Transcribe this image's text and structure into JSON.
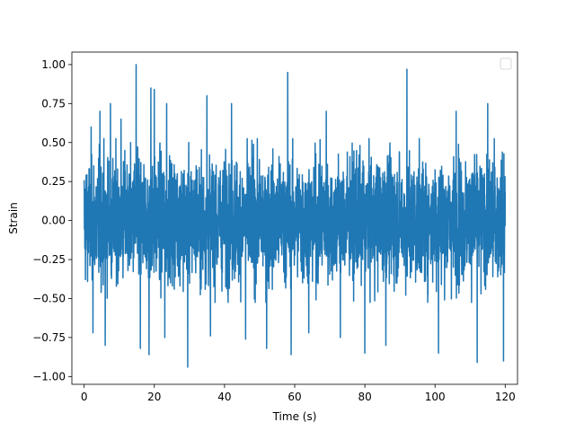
{
  "chart_data": {
    "type": "line",
    "title": "",
    "xlabel": "Time (s)",
    "ylabel": "Strain",
    "xlim": [
      -3.5,
      123.5
    ],
    "ylim": [
      -1.05,
      1.08
    ],
    "xticks": [
      {
        "value": 0,
        "label": "0"
      },
      {
        "value": 20,
        "label": "20"
      },
      {
        "value": 40,
        "label": "40"
      },
      {
        "value": 60,
        "label": "60"
      },
      {
        "value": 80,
        "label": "80"
      },
      {
        "value": 100,
        "label": "100"
      },
      {
        "value": 120,
        "label": "120"
      }
    ],
    "yticks": [
      {
        "value": 1.0,
        "label": "1.00"
      },
      {
        "value": 0.75,
        "label": "0.75"
      },
      {
        "value": 0.5,
        "label": "0.50"
      },
      {
        "value": 0.25,
        "label": "0.25"
      },
      {
        "value": 0.0,
        "label": "0.00"
      },
      {
        "value": -0.25,
        "label": "−0.25"
      },
      {
        "value": -0.5,
        "label": "−0.50"
      },
      {
        "value": -0.75,
        "label": "−0.75"
      },
      {
        "value": -1.0,
        "label": "−1.00"
      }
    ],
    "grid": false,
    "legend": {
      "position": "top-right",
      "entries": []
    },
    "series": [
      {
        "color": "#1f77b4",
        "x_range": [
          0,
          120
        ],
        "typical_envelope": [
          -0.5,
          0.5
        ],
        "peaks": [
          {
            "x": 2,
            "y": 0.6
          },
          {
            "x": 4.5,
            "y": 0.7
          },
          {
            "x": 7.5,
            "y": 0.75
          },
          {
            "x": 10.5,
            "y": 0.65
          },
          {
            "x": 14.8,
            "y": 1.0
          },
          {
            "x": 19,
            "y": 0.85
          },
          {
            "x": 20,
            "y": 0.84
          },
          {
            "x": 23.5,
            "y": 0.75
          },
          {
            "x": 35,
            "y": 0.8
          },
          {
            "x": 42,
            "y": 0.75
          },
          {
            "x": 58,
            "y": 0.95
          },
          {
            "x": 69,
            "y": 0.7
          },
          {
            "x": 92,
            "y": 0.97
          },
          {
            "x": 106,
            "y": 0.7
          },
          {
            "x": 115,
            "y": 0.75
          },
          {
            "x": 119.5,
            "y": 0.92
          }
        ],
        "troughs": [
          {
            "x": 2.5,
            "y": -0.72
          },
          {
            "x": 6,
            "y": -0.8
          },
          {
            "x": 16,
            "y": -0.82
          },
          {
            "x": 18.5,
            "y": -0.86
          },
          {
            "x": 23,
            "y": -0.75
          },
          {
            "x": 29.5,
            "y": -0.94
          },
          {
            "x": 36,
            "y": -0.74
          },
          {
            "x": 46,
            "y": -0.76
          },
          {
            "x": 52,
            "y": -0.82
          },
          {
            "x": 59,
            "y": -0.86
          },
          {
            "x": 64,
            "y": -0.72
          },
          {
            "x": 73,
            "y": -0.75
          },
          {
            "x": 80,
            "y": -0.85
          },
          {
            "x": 86,
            "y": -0.8
          },
          {
            "x": 101,
            "y": -0.85
          },
          {
            "x": 112,
            "y": -0.91
          },
          {
            "x": 119.5,
            "y": -0.9
          }
        ]
      }
    ]
  }
}
